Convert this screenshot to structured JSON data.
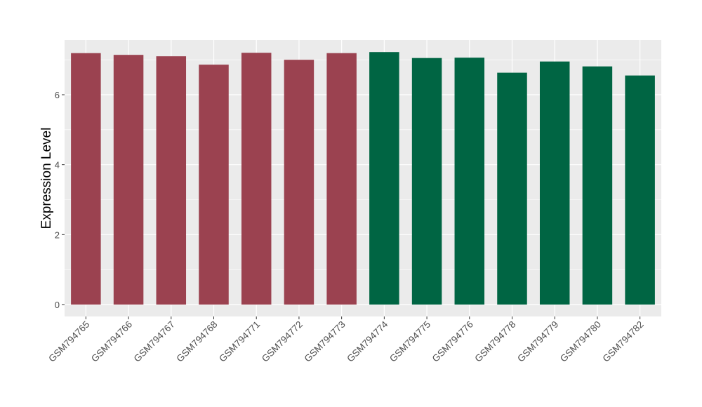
{
  "chart_data": {
    "type": "bar",
    "title": "",
    "xlabel": "",
    "ylabel": "Expression Level",
    "ylim": [
      -0.35,
      7.6
    ],
    "yticks": [
      0,
      2,
      4,
      6
    ],
    "grid": true,
    "legend": "none",
    "categories": [
      "GSM794765",
      "GSM794766",
      "GSM794767",
      "GSM794768",
      "GSM794771",
      "GSM794772",
      "GSM794773",
      "GSM794774",
      "GSM794775",
      "GSM794776",
      "GSM794778",
      "GSM794779",
      "GSM794780",
      "GSM794782"
    ],
    "values": [
      7.19,
      7.14,
      7.1,
      6.86,
      7.2,
      7.0,
      7.19,
      7.22,
      7.05,
      7.06,
      6.63,
      6.95,
      6.81,
      6.55
    ],
    "group_colors": [
      "#9b4250",
      "#9b4250",
      "#9b4250",
      "#9b4250",
      "#9b4250",
      "#9b4250",
      "#9b4250",
      "#006543",
      "#006543",
      "#006543",
      "#006543",
      "#006543",
      "#006543",
      "#006543"
    ],
    "panel_color": "#ebebeb"
  }
}
